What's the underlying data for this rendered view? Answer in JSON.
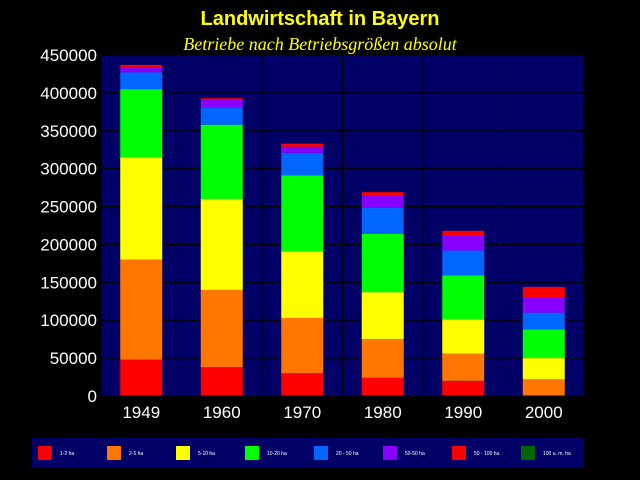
{
  "chart_data": {
    "type": "bar",
    "stacked": true,
    "title": "Landwirtschaft in Bayern",
    "subtitle": "Betriebe nach Betriebsgrößen absolut",
    "xlabel": "",
    "ylabel": "",
    "ylim": [
      0,
      450000
    ],
    "yticks": [
      "0",
      "50000",
      "100000",
      "150000",
      "200000",
      "250000",
      "300000",
      "350000",
      "400000",
      "450000"
    ],
    "categories": [
      "1949",
      "1960",
      "1970",
      "1980",
      "1990",
      "2000"
    ],
    "grid": true,
    "legend_position": "bottom",
    "series": [
      {
        "name": "1-2 ha",
        "color": "#ff0000",
        "values": [
          48000,
          38000,
          30000,
          24000,
          20000,
          0
        ]
      },
      {
        "name": "2-5 ha",
        "color": "#ff7700",
        "values": [
          132000,
          102000,
          73000,
          51000,
          36000,
          22000
        ]
      },
      {
        "name": "5-10 ha",
        "color": "#ffff00",
        "values": [
          135000,
          120000,
          88000,
          62000,
          45000,
          28000
        ]
      },
      {
        "name": "10-20 ha",
        "color": "#00ff00",
        "values": [
          90000,
          98000,
          100000,
          77000,
          58000,
          38000
        ]
      },
      {
        "name": "20 - 50 ha",
        "color": "#0066ff",
        "values": [
          22000,
          23000,
          30000,
          35000,
          33000,
          22000
        ]
      },
      {
        "name": "50-50 ha",
        "color": "#8800ff",
        "values": [
          6000,
          10000,
          8000,
          16000,
          20000,
          20000
        ]
      },
      {
        "name": "50 - 100 ha",
        "color": "#ff0000",
        "values": [
          4000,
          2000,
          4000,
          4000,
          6000,
          14000
        ]
      },
      {
        "name": "100 u. m. ha",
        "color": "#006600",
        "values": [
          0,
          0,
          0,
          0,
          0,
          0
        ]
      }
    ]
  }
}
